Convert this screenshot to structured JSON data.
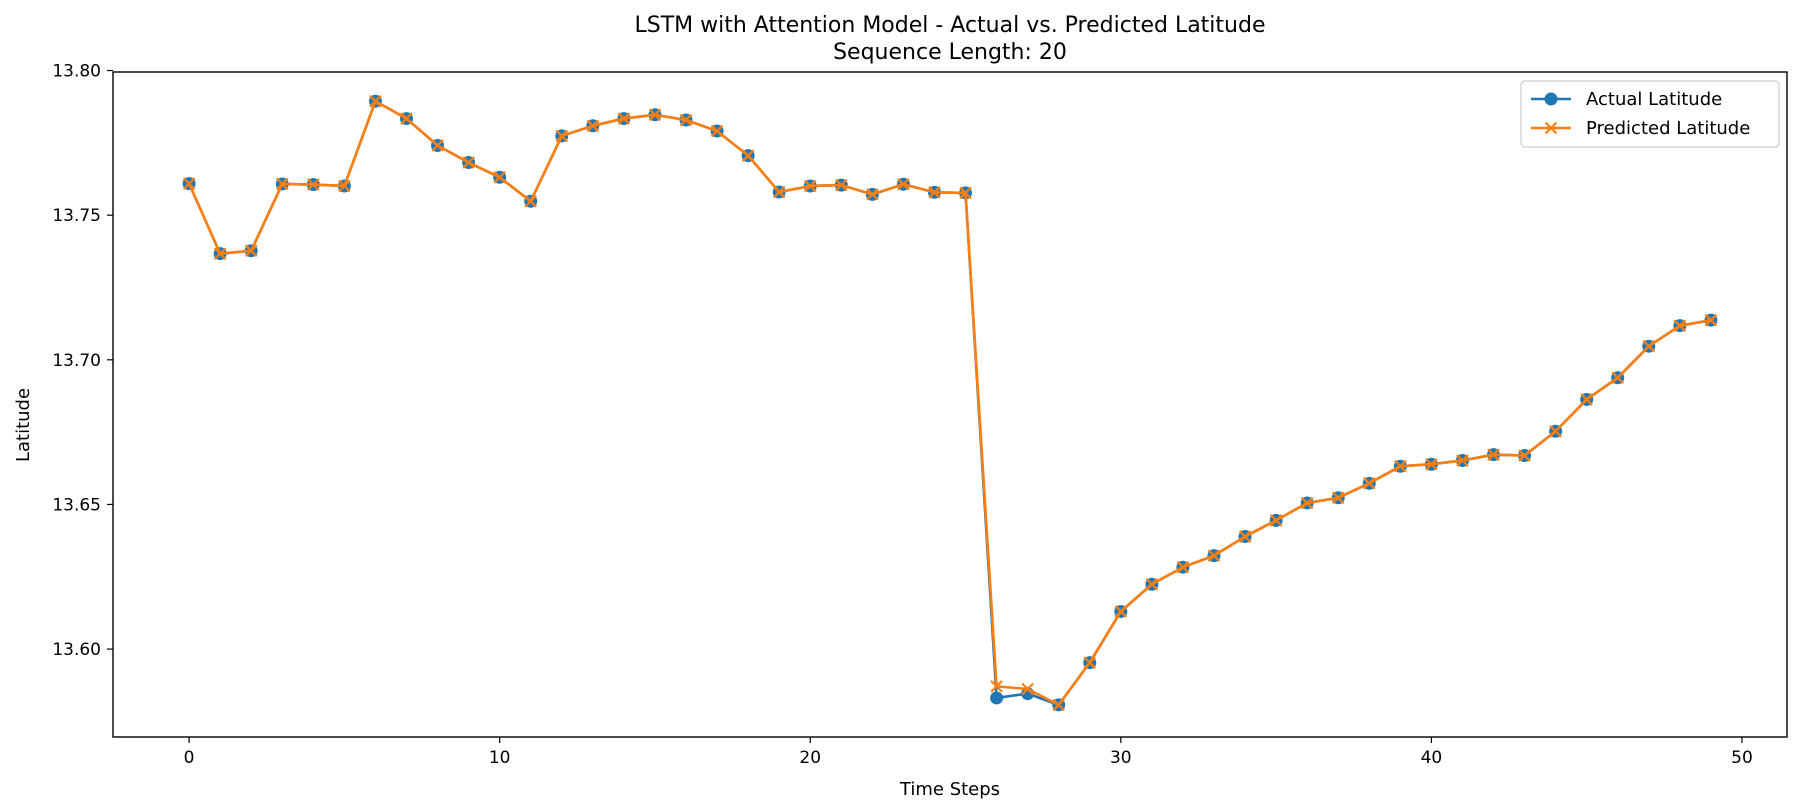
{
  "chart_data": {
    "type": "line",
    "title": "LSTM with Attention Model - Actual vs. Predicted Latitude",
    "subtitle": "Sequence Length: 20",
    "xlabel": "Time Steps",
    "ylabel": "Latitude",
    "xlim": [
      -2.45,
      51.45
    ],
    "ylim": [
      13.5696,
      13.7995
    ],
    "x_ticks": [
      0,
      10,
      20,
      30,
      40,
      50
    ],
    "x_tick_labels": [
      "0",
      "10",
      "20",
      "30",
      "40",
      "50"
    ],
    "y_ticks": [
      13.6,
      13.65,
      13.7,
      13.75,
      13.8
    ],
    "y_tick_labels": [
      "13.60",
      "13.65",
      "13.70",
      "13.75",
      "13.80"
    ],
    "grid": false,
    "legend_position": "top-right",
    "x": [
      0,
      1,
      2,
      3,
      4,
      5,
      6,
      7,
      8,
      9,
      10,
      11,
      12,
      13,
      14,
      15,
      16,
      17,
      18,
      19,
      20,
      21,
      22,
      23,
      24,
      25,
      26,
      27,
      28,
      29,
      30,
      31,
      32,
      33,
      34,
      35,
      36,
      37,
      38,
      39,
      40,
      41,
      42,
      43,
      44,
      45,
      46,
      47,
      48,
      49
    ],
    "series": [
      {
        "name": "Actual Latitude",
        "color": "#1f77b4",
        "marker": "circle",
        "values": [
          13.7609,
          13.7367,
          13.7377,
          13.7608,
          13.7606,
          13.7601,
          13.7894,
          13.7834,
          13.7741,
          13.7682,
          13.7631,
          13.7548,
          13.7774,
          13.7809,
          13.7834,
          13.7847,
          13.7829,
          13.7791,
          13.7706,
          13.758,
          13.7601,
          13.7604,
          13.7572,
          13.7607,
          13.7579,
          13.7577,
          13.5831,
          13.5846,
          13.5807,
          13.5953,
          13.613,
          13.6224,
          13.6283,
          13.6323,
          13.6389,
          13.6445,
          13.6505,
          13.6523,
          13.6573,
          13.6632,
          13.6639,
          13.6652,
          13.6672,
          13.6669,
          13.6753,
          13.6863,
          13.6938,
          13.7047,
          13.7118,
          13.7137
        ]
      },
      {
        "name": "Predicted Latitude",
        "color": "#ff7f0e",
        "marker": "x",
        "values": [
          13.7609,
          13.7367,
          13.7377,
          13.7608,
          13.7606,
          13.7601,
          13.7894,
          13.7834,
          13.7741,
          13.7682,
          13.7631,
          13.7548,
          13.7774,
          13.7809,
          13.7834,
          13.7847,
          13.7829,
          13.7791,
          13.7706,
          13.758,
          13.7601,
          13.7604,
          13.7572,
          13.7607,
          13.7579,
          13.7577,
          13.5871,
          13.5862,
          13.5807,
          13.5953,
          13.613,
          13.6224,
          13.6283,
          13.6323,
          13.6389,
          13.6445,
          13.6505,
          13.6523,
          13.6573,
          13.6632,
          13.6639,
          13.6652,
          13.6672,
          13.6669,
          13.6753,
          13.6863,
          13.6938,
          13.7047,
          13.7118,
          13.7137
        ]
      }
    ]
  }
}
